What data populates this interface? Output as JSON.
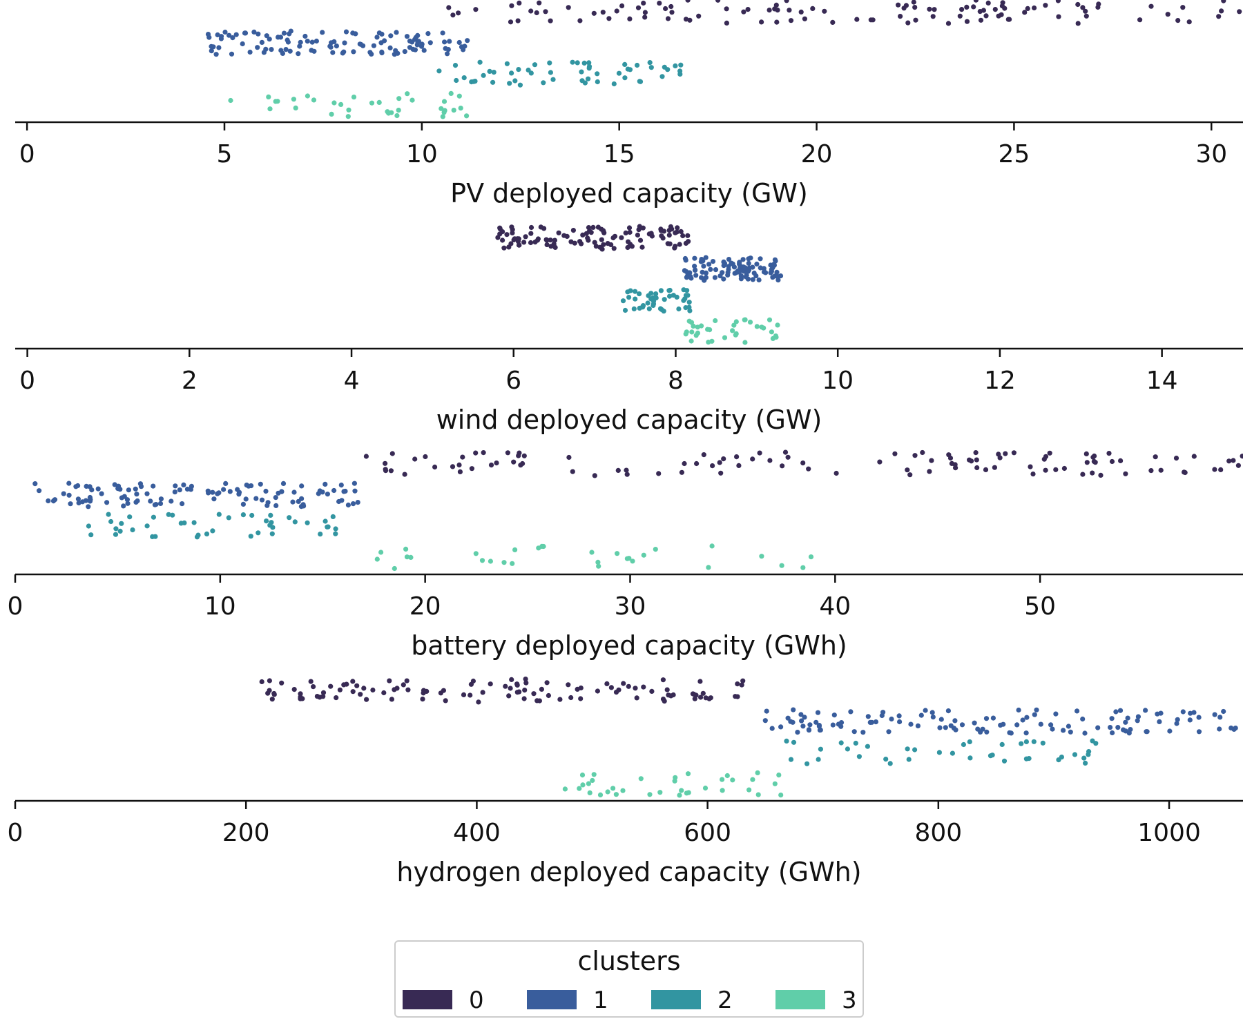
{
  "chart_data": [
    {
      "type": "scatter",
      "xlabel": "PV deployed capacity (GW)",
      "xlim": [
        -0.3,
        30.8
      ],
      "ticks": [
        0,
        5,
        10,
        15,
        20,
        25,
        30
      ],
      "tick_labels": [
        "0",
        "5",
        "10",
        "15",
        "20",
        "25",
        "30"
      ],
      "series": [
        {
          "cluster": "0",
          "x_range": [
            10.5,
            30.8
          ],
          "count": 110,
          "row": 0
        },
        {
          "cluster": "1",
          "x_range": [
            4.5,
            11.2
          ],
          "count": 110,
          "row": 1
        },
        {
          "cluster": "2",
          "x_range": [
            10.4,
            16.8
          ],
          "count": 55,
          "row": 2
        },
        {
          "cluster": "3",
          "x_range": [
            5.1,
            11.2
          ],
          "count": 35,
          "row": 3
        }
      ]
    },
    {
      "type": "scatter",
      "xlabel": "wind deployed capacity (GW)",
      "xlim": [
        -0.15,
        15.0
      ],
      "ticks": [
        0,
        2,
        4,
        6,
        8,
        10,
        12,
        14
      ],
      "tick_labels": [
        "0",
        "2",
        "4",
        "6",
        "8",
        "10",
        "12",
        "14"
      ],
      "series": [
        {
          "cluster": "0",
          "x_range": [
            5.8,
            8.2
          ],
          "count": 110,
          "row": 0
        },
        {
          "cluster": "1",
          "x_range": [
            8.1,
            9.3
          ],
          "count": 100,
          "row": 1
        },
        {
          "cluster": "2",
          "x_range": [
            7.35,
            8.2
          ],
          "count": 45,
          "row": 2
        },
        {
          "cluster": "3",
          "x_range": [
            8.1,
            9.3
          ],
          "count": 35,
          "row": 3
        }
      ]
    },
    {
      "type": "scatter",
      "xlabel": "battery deployed capacity (GWh)",
      "xlim": [
        0,
        59.9
      ],
      "ticks": [
        0,
        10,
        20,
        30,
        40,
        50
      ],
      "tick_labels": [
        "0",
        "10",
        "20",
        "30",
        "40",
        "50"
      ],
      "series": [
        {
          "cluster": "0",
          "x_range": [
            16.5,
            59.9
          ],
          "count": 110,
          "row": 0
        },
        {
          "cluster": "1",
          "x_range": [
            0.9,
            16.8
          ],
          "count": 110,
          "row": 1
        },
        {
          "cluster": "2",
          "x_range": [
            3.2,
            16.0
          ],
          "count": 45,
          "row": 2
        },
        {
          "cluster": "3",
          "x_range": [
            17.4,
            40.0
          ],
          "count": 30,
          "row": 3
        }
      ]
    },
    {
      "type": "scatter",
      "xlabel": "hydrogen deployed capacity (GWh)",
      "xlim": [
        0,
        1064
      ],
      "ticks": [
        0,
        200,
        400,
        600,
        800,
        1000
      ],
      "tick_labels": [
        "0",
        "200",
        "400",
        "600",
        "800",
        "1000"
      ],
      "series": [
        {
          "cluster": "0",
          "x_range": [
            213,
            635
          ],
          "count": 110,
          "row": 0
        },
        {
          "cluster": "1",
          "x_range": [
            650,
            1064
          ],
          "count": 120,
          "row": 1
        },
        {
          "cluster": "2",
          "x_range": [
            650,
            940
          ],
          "count": 40,
          "row": 2
        },
        {
          "cluster": "3",
          "x_range": [
            475,
            670
          ],
          "count": 35,
          "row": 3
        }
      ]
    }
  ],
  "legend": {
    "title": "clusters",
    "placement": "bottom-center",
    "items": [
      {
        "label": "0",
        "color": "#382a54"
      },
      {
        "label": "1",
        "color": "#395d9c"
      },
      {
        "label": "2",
        "color": "#3295a1"
      },
      {
        "label": "3",
        "color": "#60cea9"
      }
    ]
  }
}
